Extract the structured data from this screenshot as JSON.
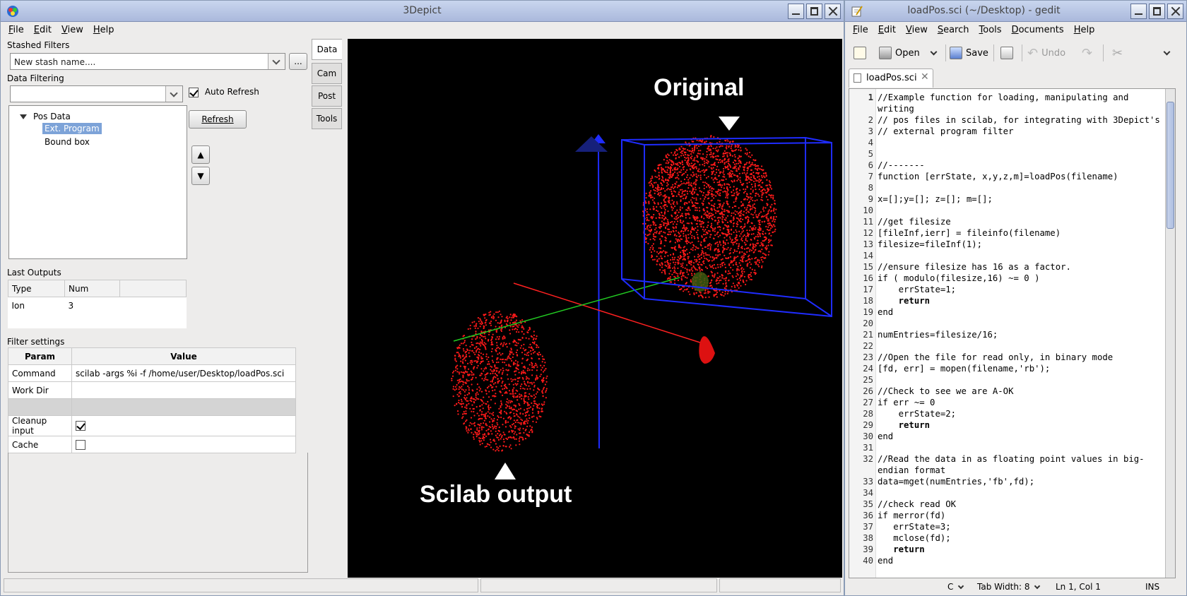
{
  "depict": {
    "title": "3Depict",
    "menu": [
      "File",
      "Edit",
      "View",
      "Help"
    ],
    "stashed_filters_label": "Stashed Filters",
    "stash_name_value": "New stash name....",
    "stash_more_button": "...",
    "data_filtering_label": "Data Filtering",
    "auto_refresh_label": "Auto Refresh",
    "auto_refresh_checked": true,
    "refresh_button": "Refresh",
    "up_arrow": "▲",
    "down_arrow": "▼",
    "tree": {
      "root": "Pos Data",
      "children": [
        "Ext. Program",
        "Bound box"
      ],
      "selected": "Ext. Program"
    },
    "tabs": [
      "Data",
      "Cam",
      "Post",
      "Tools"
    ],
    "active_tab": "Data",
    "last_outputs_label": "Last Outputs",
    "outputs_headers": [
      "Type",
      "Num"
    ],
    "outputs_rows": [
      [
        "Ion",
        "3"
      ]
    ],
    "filter_settings_label": "Filter settings",
    "settings_headers": [
      "Param",
      "Value"
    ],
    "settings_rows": [
      {
        "param": "Command",
        "value": "scilab -args %i -f /home/user/Desktop/loadPos.sci"
      },
      {
        "param": "Work Dir",
        "value": ""
      },
      {
        "param": "",
        "value": ""
      },
      {
        "param": "Cleanup input",
        "checked": true
      },
      {
        "param": "Cache",
        "checked": false
      }
    ],
    "viewport": {
      "label_original": "Original",
      "label_scilab": "Scilab output",
      "background": "#000000",
      "point_color": "#ff1a1a",
      "box_color": "#1f2cff"
    }
  },
  "gedit": {
    "title": "loadPos.sci (~/Desktop) - gedit",
    "menu": [
      "File",
      "Edit",
      "View",
      "Search",
      "Tools",
      "Documents",
      "Help"
    ],
    "toolbar": {
      "open": "Open",
      "save": "Save",
      "undo": "Undo"
    },
    "tab_label": "loadPos.sci",
    "code_lines": [
      {
        "n": "1",
        "t": "//Example function for loading, manipulating and writing",
        "k": "cm"
      },
      {
        "n": "2",
        "t": "// pos files in scilab, for integrating with 3Depict's",
        "k": "cm"
      },
      {
        "n": "3",
        "t": "// external program filter",
        "k": "cm"
      },
      {
        "n": "4",
        "t": ""
      },
      {
        "n": "5",
        "t": ""
      },
      {
        "n": "6",
        "t": "//-------",
        "k": "cm"
      },
      {
        "n": "7",
        "t": "function [errState, x,y,z,m]=loadPos(filename)"
      },
      {
        "n": "8",
        "t": ""
      },
      {
        "n": "9",
        "t": "x=[];y=[]; z=[]; m=[];"
      },
      {
        "n": "10",
        "t": ""
      },
      {
        "n": "11",
        "t": "//get filesize",
        "k": "cm"
      },
      {
        "n": "12",
        "t": "[fileInf,ierr] = fileinfo(filename)"
      },
      {
        "n": "13",
        "t": "filesize=fileInf(1);"
      },
      {
        "n": "14",
        "t": ""
      },
      {
        "n": "15",
        "t": "//ensure filesize has 16 as a factor.",
        "k": "cm"
      },
      {
        "n": "16",
        "t": "if ( modulo(filesize,16) ~= 0 )"
      },
      {
        "n": "17",
        "t": "    errState=1;"
      },
      {
        "n": "18",
        "t": "    return",
        "k": "kw"
      },
      {
        "n": "19",
        "t": "end"
      },
      {
        "n": "20",
        "t": ""
      },
      {
        "n": "21",
        "t": "numEntries=filesize/16;"
      },
      {
        "n": "22",
        "t": ""
      },
      {
        "n": "23",
        "t": "//Open the file for read only, in binary mode",
        "k": "cm"
      },
      {
        "n": "24",
        "t": "[fd, err] = mopen(filename,'rb');"
      },
      {
        "n": "25",
        "t": ""
      },
      {
        "n": "26",
        "t": "//Check to see we are A-OK",
        "k": "cm"
      },
      {
        "n": "27",
        "t": "if err ~= 0"
      },
      {
        "n": "28",
        "t": "    errState=2;"
      },
      {
        "n": "29",
        "t": "    return",
        "k": "kw"
      },
      {
        "n": "30",
        "t": "end"
      },
      {
        "n": "31",
        "t": ""
      },
      {
        "n": "32",
        "t": "//Read the data in as floating point values in big-endian format",
        "k": "cm"
      },
      {
        "n": "33",
        "t": "data=mget(numEntries,'fb',fd);"
      },
      {
        "n": "34",
        "t": ""
      },
      {
        "n": "35",
        "t": "//check read OK",
        "k": "cm"
      },
      {
        "n": "36",
        "t": "if merror(fd)"
      },
      {
        "n": "37",
        "t": "   errState=3;"
      },
      {
        "n": "38",
        "t": "   mclose(fd);"
      },
      {
        "n": "39",
        "t": "   return",
        "k": "kw"
      },
      {
        "n": "40",
        "t": "end"
      }
    ],
    "status": {
      "lang": "C",
      "tab_width": "Tab Width:  8",
      "position": "Ln 1, Col 1",
      "mode": "INS"
    }
  }
}
